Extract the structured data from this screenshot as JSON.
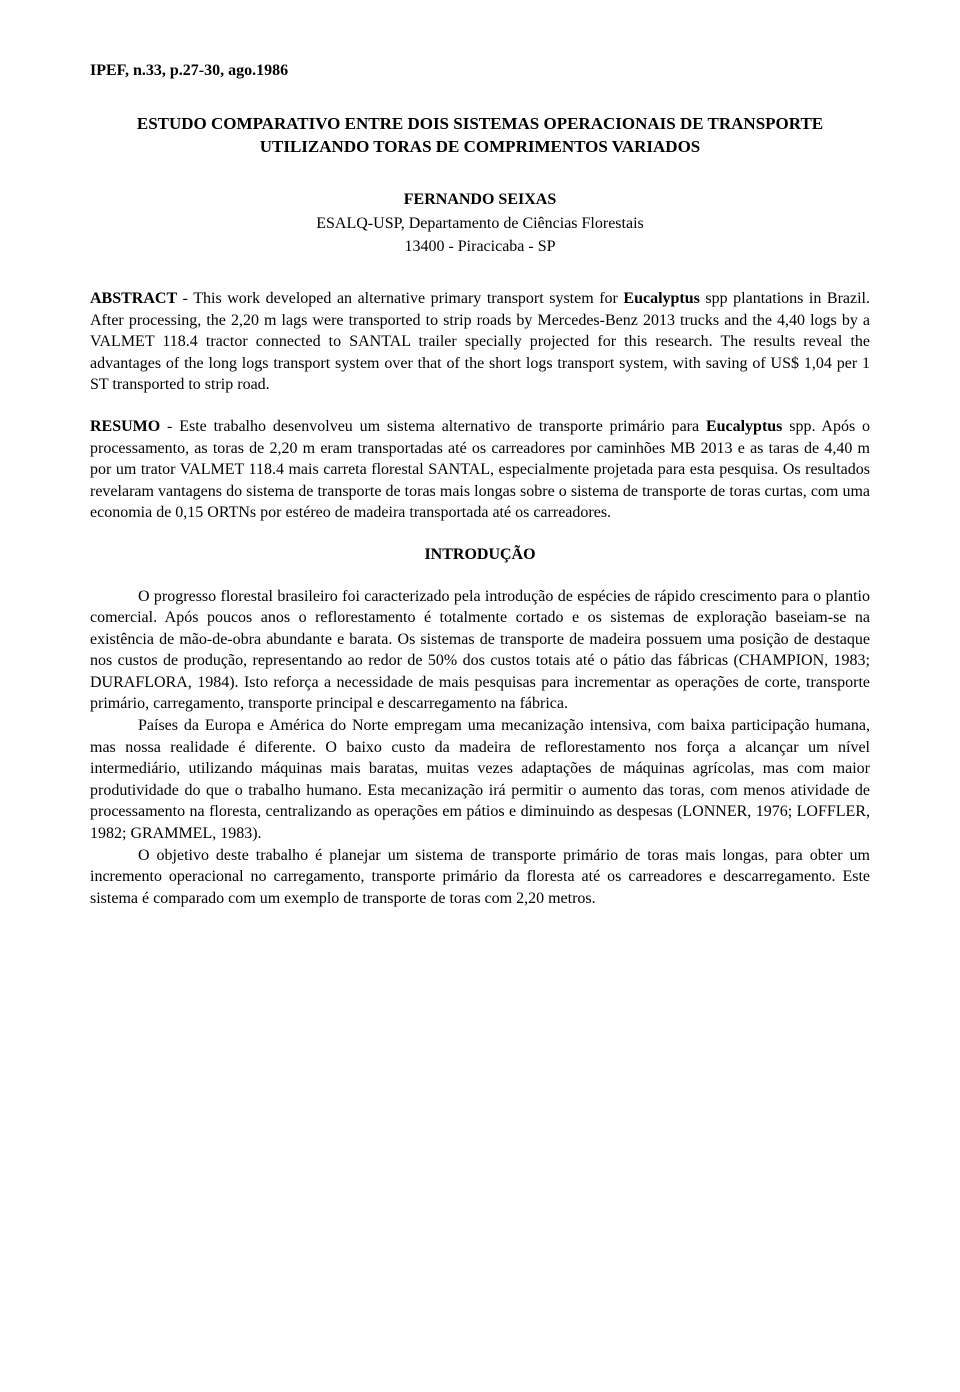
{
  "citation": "IPEF, n.33, p.27-30, ago.1986",
  "title": "ESTUDO COMPARATIVO ENTRE DOIS SISTEMAS OPERACIONAIS DE TRANSPORTE UTILIZANDO TORAS DE COMPRIMENTOS VARIADOS",
  "author": "FERNANDO SEIXAS",
  "affiliation": "ESALQ-USP, Departamento de Ciências Florestais",
  "address": "13400 - Piracicaba - SP",
  "abstract": {
    "label": "ABSTRACT",
    "text_before": " - This work developed an alternative primary transport system for ",
    "species": "Eucalyptus",
    "text_after": " spp plantations in Brazil. After processing, the 2,20 m lags were transported to strip roads by Mercedes-Benz 2013 trucks and the 4,40 logs by a VALMET 118.4 tractor connected to SANTAL trailer specially projected for this research. The results reveal the advantages of the long logs transport system over that of the short logs transport system, with saving of US$ 1,04 per 1 ST transported to strip road."
  },
  "resumo": {
    "label": "RESUMO",
    "text_before": " - Este trabalho desenvolveu um sistema alternativo de transporte primário para ",
    "species": "Eucalyptus",
    "text_after": " spp. Após o processamento, as toras de 2,20 m eram transportadas até os carreadores por caminhões MB 2013 e as taras de 4,40 m por um trator VALMET 118.4 mais carreta florestal SANTAL, especialmente projetada para esta pesquisa. Os resultados revelaram vantagens do sistema de transporte de toras mais longas sobre o sistema de transporte de toras curtas, com uma economia de 0,15 ORTNs por estéreo de madeira transportada até os carreadores."
  },
  "intro_heading": "INTRODUÇÃO",
  "intro_p1": "O progresso florestal brasileiro foi caracterizado pela introdução de espécies de rápido crescimento para o plantio comercial. Após poucos anos o reflorestamento é totalmente cortado e os sistemas de exploração baseiam-se na existência de mão-de-obra abundante e barata. Os sistemas de transporte de madeira possuem uma posição de destaque nos custos de produção, representando ao redor de 50% dos custos totais até o pátio das fábricas (CHAMPION, 1983; DURAFLORA, 1984). Isto reforça a necessidade de mais pesquisas para incrementar as operações de corte, transporte primário, carregamento, transporte principal e descarregamento na fábrica.",
  "intro_p2": "Países da Europa e América do Norte empregam uma mecanização intensiva, com baixa participação humana, mas nossa realidade é diferente. O baixo custo da madeira de reflorestamento nos força a alcançar um nível intermediário, utilizando máquinas mais baratas, muitas vezes adaptações de máquinas agrícolas, mas com maior produtividade do que o trabalho humano. Esta mecanização irá permitir o aumento das toras, com menos atividade de processamento na floresta, centralizando as operações em pátios e diminuindo as despesas (LONNER, 1976; LOFFLER, 1982; GRAMMEL, 1983).",
  "intro_p3": "O objetivo deste trabalho é planejar um sistema de transporte primário de toras mais longas, para obter um incremento operacional no carregamento, transporte primário da floresta até os carreadores e descarregamento. Este sistema é comparado com um exemplo de transporte de toras com 2,20 metros."
}
